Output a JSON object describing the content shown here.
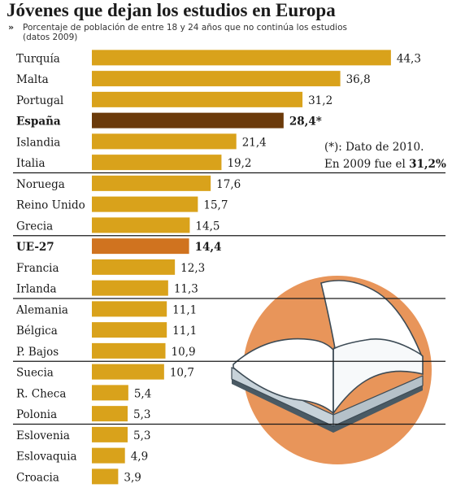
{
  "header": {
    "title": "Jóvenes que dejan los estudios en Europa",
    "subtitle_line1": "Porcentaje de población de entre 18 y 24 años que no continúa los estudios",
    "subtitle_line2": "(datos 2009)"
  },
  "note": {
    "line1": "(*): Dato de 2010.",
    "line2_prefix": "En 2009 fue el ",
    "line2_value": "31,2%"
  },
  "colors": {
    "bar": "#d9a21b",
    "highlight_spain": "#6b3a0a",
    "highlight_eu": "#d0731f",
    "separator": "#1a1a1a",
    "circle": "#e8955a"
  },
  "icons": {
    "illustration": "open-book-icon"
  },
  "chart_data": {
    "type": "bar",
    "orientation": "horizontal",
    "categories": [
      "Turquía",
      "Malta",
      "Portugal",
      "España",
      "Islandia",
      "Italia",
      "Noruega",
      "Reino Unido",
      "Grecia",
      "UE-27",
      "Francia",
      "Irlanda",
      "Alemania",
      "Bélgica",
      "P. Bajos",
      "Suecia",
      "R. Checa",
      "Polonia",
      "Eslovenia",
      "Eslovaquia",
      "Croacia"
    ],
    "values": [
      44.3,
      36.8,
      31.2,
      28.4,
      21.4,
      19.2,
      17.6,
      15.7,
      14.5,
      14.4,
      12.3,
      11.3,
      11.1,
      11.1,
      10.9,
      10.7,
      5.4,
      5.3,
      5.3,
      4.9,
      3.9
    ],
    "value_labels": [
      "44,3",
      "36,8",
      "31,2",
      "28,4*",
      "21,4",
      "19,2",
      "17,6",
      "15,7",
      "14,5",
      "14,4",
      "12,3",
      "11,3",
      "11,1",
      "11,1",
      "10,9",
      "10,7",
      "5,4",
      "5,3",
      "5,3",
      "4,9",
      "3,9"
    ],
    "highlighted": [
      "España",
      "UE-27"
    ],
    "group_separators_after": [
      "Italia",
      "Grecia",
      "Irlanda",
      "P. Bajos",
      "Polonia"
    ],
    "xlim": [
      0,
      46
    ],
    "grid": false,
    "title": "Jóvenes que dejan los estudios en Europa"
  }
}
